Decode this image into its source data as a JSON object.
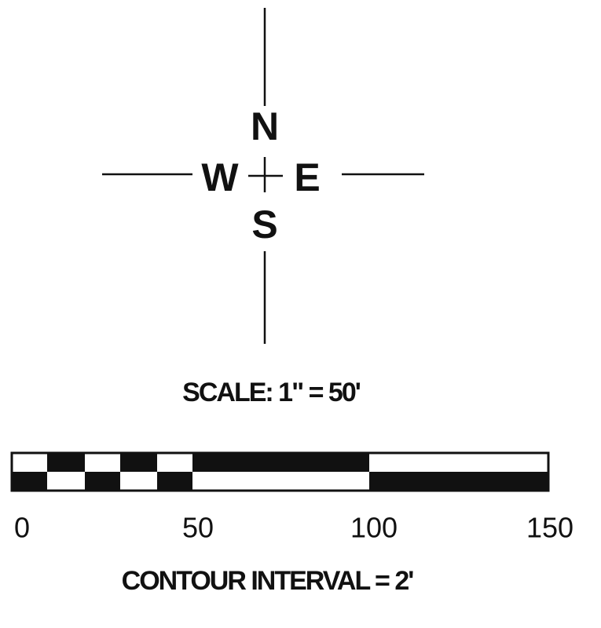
{
  "compass": {
    "north": "N",
    "east": "E",
    "south": "S",
    "west": "W"
  },
  "scale": {
    "title": "SCALE: 1\" = 50'",
    "ticks": [
      0,
      50,
      100,
      150
    ]
  },
  "contour": "CONTOUR INTERVAL = 2'"
}
